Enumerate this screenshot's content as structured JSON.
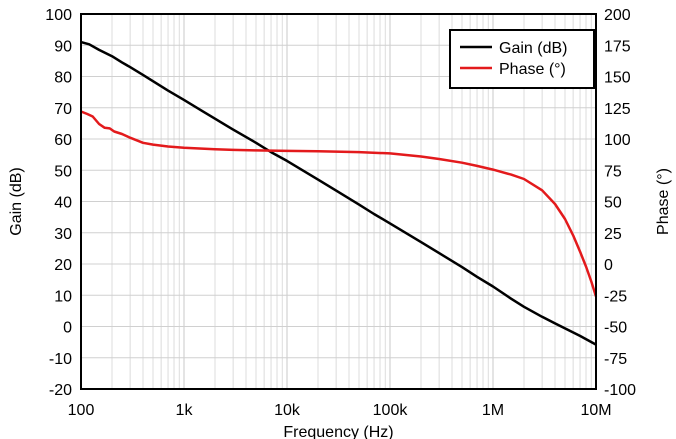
{
  "chart_data": {
    "type": "line",
    "x_scale": "log",
    "grid": true,
    "legend_position": "top-right",
    "xlabel": "Frequency (Hz)",
    "ylabel_left": "Gain (dB)",
    "ylabel_right": "Phase (°)",
    "xlim": [
      100,
      10000000
    ],
    "ylim_left": [
      -20,
      100
    ],
    "ylim_right": [
      -100,
      200
    ],
    "x_tick_labels": [
      "100",
      "1k",
      "10k",
      "100k",
      "1M",
      "10M"
    ],
    "y_left_tick_labels": [
      "-20",
      "-10",
      "0",
      "10",
      "20",
      "30",
      "40",
      "50",
      "60",
      "70",
      "80",
      "90",
      "100"
    ],
    "y_right_tick_labels": [
      "-100",
      "-75",
      "-50",
      "-25",
      "0",
      "25",
      "50",
      "75",
      "100",
      "125",
      "150",
      "175",
      "200"
    ],
    "series": [
      {
        "name": "Gain (dB)",
        "axis": "left",
        "color": "#000000",
        "x": [
          100,
          120,
          150,
          200,
          250,
          300,
          400,
          500,
          700,
          1000,
          1500,
          2000,
          3000,
          5000,
          7000,
          10000,
          15000,
          20000,
          30000,
          50000,
          70000,
          100000,
          150000,
          200000,
          300000,
          500000,
          700000,
          1000000,
          1500000,
          2000000,
          3000000,
          4000000,
          5000000,
          7000000,
          10000000
        ],
        "values": [
          91,
          90.3,
          88.5,
          86.5,
          84.5,
          83,
          80.5,
          78.5,
          75.5,
          72.5,
          69,
          66.5,
          63,
          58.8,
          55.8,
          53,
          49.5,
          47,
          43.5,
          39,
          36,
          33,
          29.5,
          27,
          23.5,
          19,
          15.9,
          12.8,
          8.9,
          6.3,
          3.1,
          1,
          -0.6,
          -3,
          -5.8
        ]
      },
      {
        "name": "Phase (°)",
        "axis": "right",
        "color": "#e31a1c",
        "x": [
          100,
          115,
          130,
          150,
          170,
          190,
          210,
          250,
          300,
          400,
          500,
          700,
          1000,
          1500,
          2000,
          3000,
          5000,
          7000,
          10000,
          20000,
          50000,
          100000,
          200000,
          300000,
          500000,
          700000,
          1000000,
          1500000,
          2000000,
          3000000,
          4000000,
          5000000,
          6000000,
          7000000,
          8000000,
          9000000,
          10000000
        ],
        "values": [
          122,
          120,
          118,
          112,
          109,
          108.5,
          106,
          104,
          101,
          97,
          95.5,
          94,
          93,
          92.3,
          91.8,
          91.3,
          90.9,
          90.7,
          90.5,
          90.2,
          89.5,
          88.5,
          86,
          84,
          81,
          78.5,
          75.5,
          71.5,
          68,
          59,
          48,
          36,
          23,
          10,
          -2,
          -14,
          -26
        ]
      }
    ]
  }
}
